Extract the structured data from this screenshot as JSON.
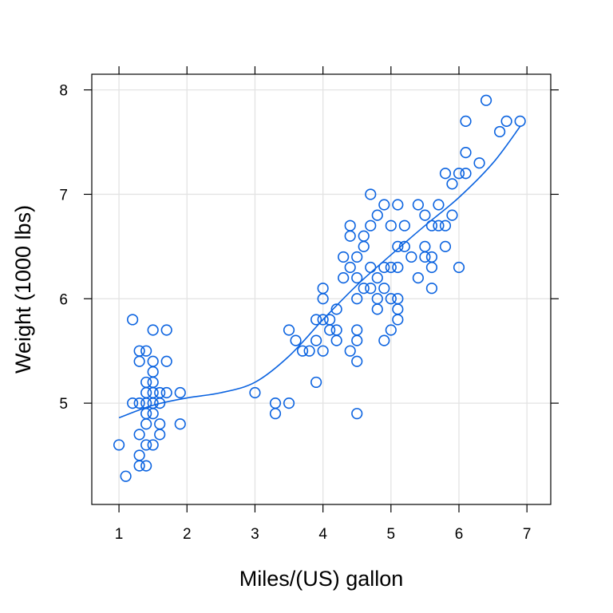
{
  "chart_data": {
    "type": "scatter",
    "title": "",
    "xlabel": "Miles/(US) gallon",
    "ylabel": "Weight (1000 lbs)",
    "xlim": [
      0.6,
      7.35
    ],
    "ylim": [
      4.03,
      8.15
    ],
    "x_ticks": [
      1,
      2,
      3,
      4,
      5,
      6,
      7
    ],
    "y_ticks": [
      5,
      6,
      7,
      8
    ],
    "grid": true,
    "legend": "none",
    "color": "#0b63e0",
    "series": [
      {
        "type": "scatter",
        "points": [
          [
            1.0,
            4.6
          ],
          [
            1.1,
            4.3
          ],
          [
            1.2,
            5.8
          ],
          [
            1.2,
            5.0
          ],
          [
            1.3,
            5.5
          ],
          [
            1.3,
            5.4
          ],
          [
            1.3,
            5.0
          ],
          [
            1.3,
            4.7
          ],
          [
            1.3,
            4.5
          ],
          [
            1.3,
            4.4
          ],
          [
            1.4,
            5.5
          ],
          [
            1.4,
            5.2
          ],
          [
            1.4,
            5.1
          ],
          [
            1.4,
            5.0
          ],
          [
            1.4,
            4.9
          ],
          [
            1.4,
            4.8
          ],
          [
            1.4,
            4.6
          ],
          [
            1.4,
            4.4
          ],
          [
            1.5,
            5.7
          ],
          [
            1.5,
            5.4
          ],
          [
            1.5,
            5.3
          ],
          [
            1.5,
            5.2
          ],
          [
            1.5,
            5.1
          ],
          [
            1.5,
            5.0
          ],
          [
            1.5,
            4.9
          ],
          [
            1.5,
            4.6
          ],
          [
            1.6,
            5.1
          ],
          [
            1.6,
            5.0
          ],
          [
            1.6,
            4.8
          ],
          [
            1.6,
            4.7
          ],
          [
            1.7,
            5.7
          ],
          [
            1.7,
            5.4
          ],
          [
            1.7,
            5.1
          ],
          [
            1.9,
            5.1
          ],
          [
            1.9,
            4.8
          ],
          [
            3.0,
            5.1
          ],
          [
            3.3,
            5.0
          ],
          [
            3.3,
            4.9
          ],
          [
            3.5,
            5.7
          ],
          [
            3.5,
            5.0
          ],
          [
            3.6,
            5.6
          ],
          [
            3.7,
            5.5
          ],
          [
            3.8,
            5.5
          ],
          [
            3.9,
            5.8
          ],
          [
            3.9,
            5.6
          ],
          [
            3.9,
            5.2
          ],
          [
            4.0,
            6.1
          ],
          [
            4.0,
            6.0
          ],
          [
            4.0,
            5.8
          ],
          [
            4.0,
            5.5
          ],
          [
            4.1,
            5.8
          ],
          [
            4.1,
            5.7
          ],
          [
            4.2,
            5.9
          ],
          [
            4.2,
            5.7
          ],
          [
            4.2,
            5.6
          ],
          [
            4.3,
            6.4
          ],
          [
            4.3,
            6.2
          ],
          [
            4.4,
            6.7
          ],
          [
            4.4,
            6.6
          ],
          [
            4.4,
            6.3
          ],
          [
            4.4,
            5.5
          ],
          [
            4.5,
            6.4
          ],
          [
            4.5,
            6.2
          ],
          [
            4.5,
            6.0
          ],
          [
            4.5,
            5.7
          ],
          [
            4.5,
            5.6
          ],
          [
            4.5,
            5.4
          ],
          [
            4.5,
            4.9
          ],
          [
            4.6,
            6.6
          ],
          [
            4.6,
            6.5
          ],
          [
            4.6,
            6.1
          ],
          [
            4.7,
            7.0
          ],
          [
            4.7,
            6.7
          ],
          [
            4.7,
            6.3
          ],
          [
            4.7,
            6.1
          ],
          [
            4.8,
            6.8
          ],
          [
            4.8,
            6.2
          ],
          [
            4.8,
            6.0
          ],
          [
            4.8,
            5.9
          ],
          [
            4.9,
            6.9
          ],
          [
            4.9,
            6.3
          ],
          [
            4.9,
            6.1
          ],
          [
            4.9,
            5.6
          ],
          [
            5.0,
            6.7
          ],
          [
            5.0,
            6.3
          ],
          [
            5.0,
            6.0
          ],
          [
            5.0,
            5.7
          ],
          [
            5.1,
            6.9
          ],
          [
            5.1,
            6.5
          ],
          [
            5.1,
            6.3
          ],
          [
            5.1,
            6.0
          ],
          [
            5.1,
            5.9
          ],
          [
            5.1,
            5.8
          ],
          [
            5.2,
            6.7
          ],
          [
            5.2,
            6.5
          ],
          [
            5.3,
            6.4
          ],
          [
            5.4,
            6.9
          ],
          [
            5.4,
            6.2
          ],
          [
            5.5,
            6.8
          ],
          [
            5.5,
            6.5
          ],
          [
            5.5,
            6.4
          ],
          [
            5.6,
            6.7
          ],
          [
            5.6,
            6.4
          ],
          [
            5.6,
            6.3
          ],
          [
            5.6,
            6.1
          ],
          [
            5.7,
            6.9
          ],
          [
            5.7,
            6.7
          ],
          [
            5.8,
            7.2
          ],
          [
            5.8,
            6.7
          ],
          [
            5.8,
            6.5
          ],
          [
            5.9,
            7.1
          ],
          [
            5.9,
            6.8
          ],
          [
            6.0,
            7.2
          ],
          [
            6.0,
            6.3
          ],
          [
            6.1,
            7.7
          ],
          [
            6.1,
            7.4
          ],
          [
            6.1,
            7.2
          ],
          [
            6.3,
            7.3
          ],
          [
            6.4,
            7.9
          ],
          [
            6.6,
            7.6
          ],
          [
            6.7,
            7.7
          ],
          [
            6.9,
            7.7
          ]
        ]
      },
      {
        "type": "smooth-line",
        "points": [
          [
            1.0,
            4.86
          ],
          [
            1.5,
            4.98
          ],
          [
            2.0,
            5.05
          ],
          [
            2.5,
            5.1
          ],
          [
            3.0,
            5.2
          ],
          [
            3.5,
            5.45
          ],
          [
            4.0,
            5.8
          ],
          [
            4.5,
            6.13
          ],
          [
            5.0,
            6.42
          ],
          [
            5.5,
            6.7
          ],
          [
            6.0,
            6.97
          ],
          [
            6.5,
            7.3
          ],
          [
            6.9,
            7.65
          ]
        ]
      }
    ]
  }
}
